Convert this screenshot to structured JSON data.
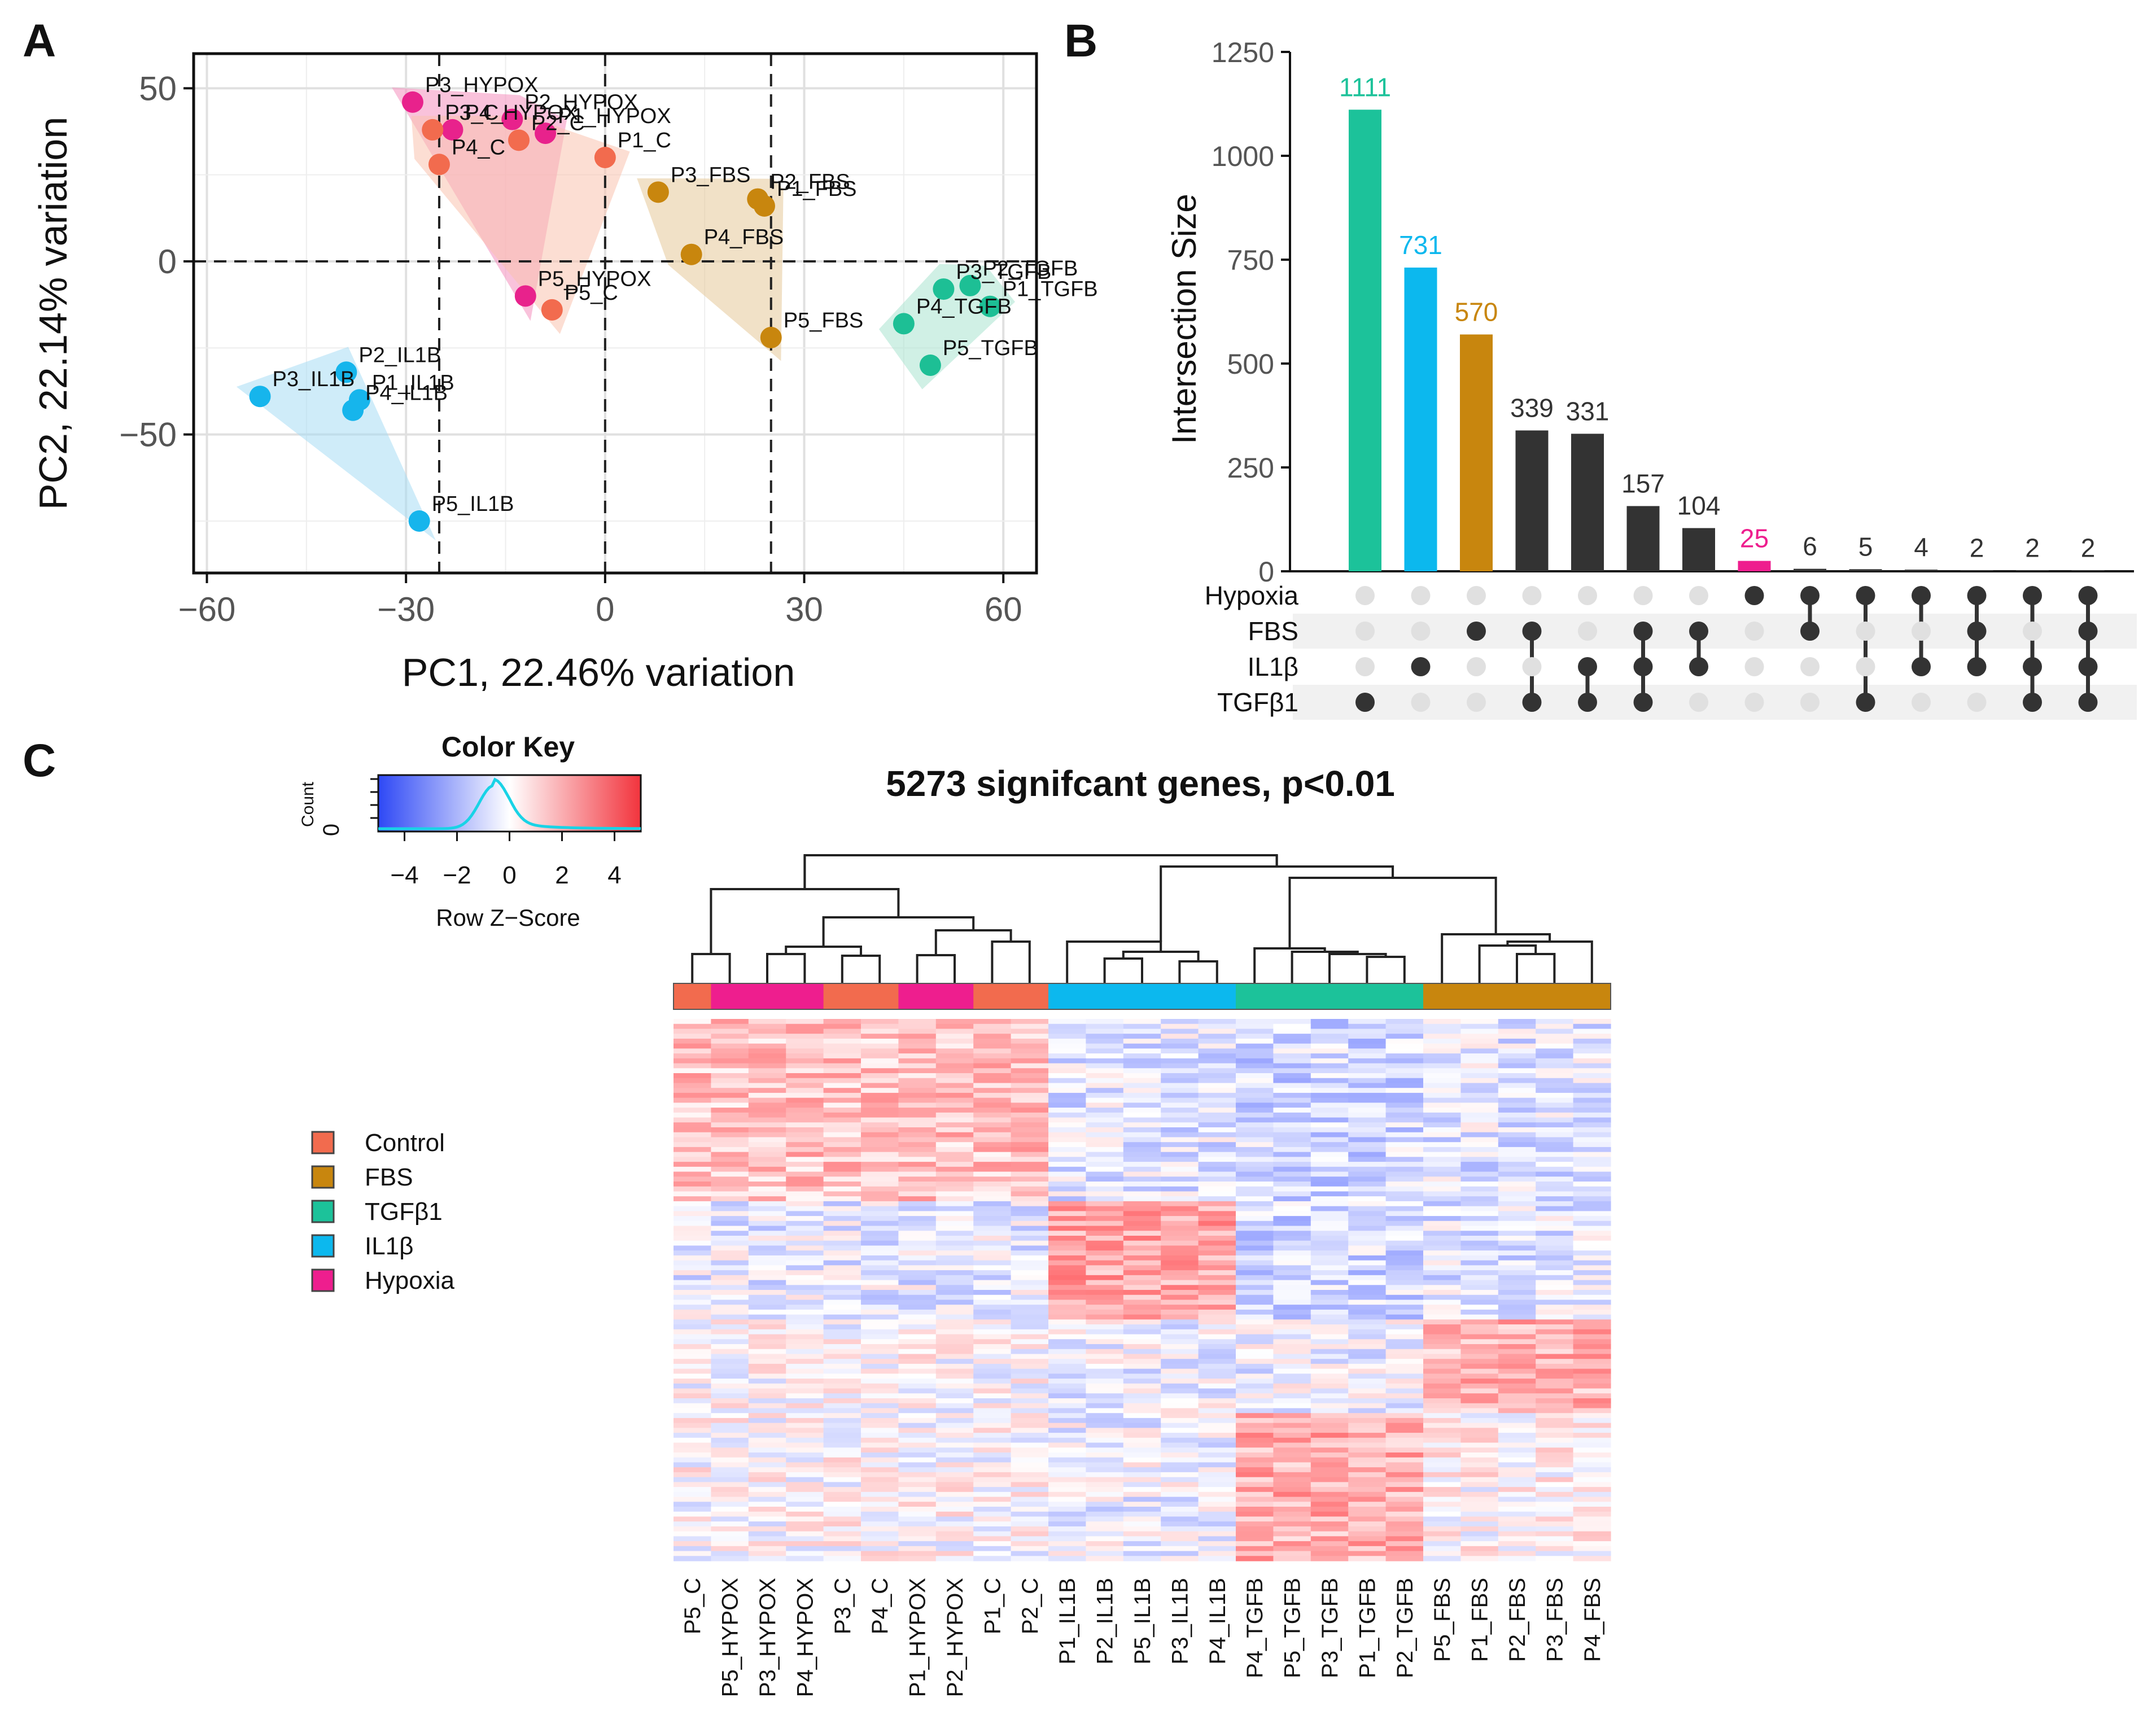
{
  "panels": {
    "a": "A",
    "b": "B",
    "c": "C"
  },
  "chart_data": [
    {
      "id": "pca",
      "type": "scatter",
      "xlabel": "PC1, 22.46% variation",
      "ylabel": "PC2, 22.14% variation",
      "xlim": [
        -62,
        65
      ],
      "ylim": [
        -90,
        60
      ],
      "xticks": [
        -60,
        -30,
        0,
        30,
        60
      ],
      "yticks": [
        50,
        0,
        -50
      ],
      "ytick_labels": [
        "50",
        "0",
        "−50"
      ],
      "xtick_labels": [
        "−60",
        "−30",
        "0",
        "30",
        "60"
      ],
      "reference_lines": {
        "x": [
          -25,
          0,
          25
        ],
        "y": [
          0
        ]
      },
      "grid": true,
      "groups": [
        {
          "name": "Hypoxia",
          "color": "#E8228C",
          "hull": "#F48FBE",
          "points": [
            {
              "label": "P3_HYPOX",
              "x": -29,
              "y": 46
            },
            {
              "label": "P2_HYPOX",
              "x": -14,
              "y": 41
            },
            {
              "label": "P4_HYPOX",
              "x": -23,
              "y": 38
            },
            {
              "label": "P1_HYPOX",
              "x": -9,
              "y": 37
            },
            {
              "label": "P5_HYPOX",
              "x": -12,
              "y": -10
            }
          ]
        },
        {
          "name": "Control",
          "color": "#F26B4E",
          "hull": "#F9C2AF",
          "points": [
            {
              "label": "P3_C",
              "x": -26,
              "y": 38
            },
            {
              "label": "P4_C",
              "x": -25,
              "y": 28
            },
            {
              "label": "P2_C",
              "x": -13,
              "y": 35
            },
            {
              "label": "P1_C",
              "x": 0,
              "y": 30
            },
            {
              "label": "P5_C",
              "x": -8,
              "y": -14
            }
          ]
        },
        {
          "name": "FBS",
          "color": "#C8860E",
          "hull": "#E6C999",
          "points": [
            {
              "label": "P2_FBS",
              "x": 23,
              "y": 18
            },
            {
              "label": "P1_FBS",
              "x": 24,
              "y": 16
            },
            {
              "label": "P3_FBS",
              "x": 8,
              "y": 20
            },
            {
              "label": "P4_FBS",
              "x": 13,
              "y": 2
            },
            {
              "label": "P5_FBS",
              "x": 25,
              "y": -22
            }
          ]
        },
        {
          "name": "TGFB",
          "color": "#1DBF95",
          "hull": "#A9E3CF",
          "points": [
            {
              "label": "P2_TGFB",
              "x": 55,
              "y": -7
            },
            {
              "label": "P3_TGFB",
              "x": 51,
              "y": -8
            },
            {
              "label": "P1_TGFB",
              "x": 58,
              "y": -13
            },
            {
              "label": "P4_TGFB",
              "x": 45,
              "y": -18
            },
            {
              "label": "P5_TGFB",
              "x": 49,
              "y": -30
            }
          ]
        },
        {
          "name": "IL1B",
          "color": "#16B5EC",
          "hull": "#A8DDF4",
          "points": [
            {
              "label": "P2_IL1B",
              "x": -39,
              "y": -32
            },
            {
              "label": "P1_IL1B",
              "x": -37,
              "y": -40
            },
            {
              "label": "P3_IL1B",
              "x": -52,
              "y": -39
            },
            {
              "label": "P4_IL1B",
              "x": -38,
              "y": -43
            },
            {
              "label": "P5_IL1B",
              "x": -28,
              "y": -75
            }
          ]
        }
      ]
    },
    {
      "id": "upset",
      "type": "bar",
      "ylabel": "Intersection Size",
      "ylim": [
        0,
        1250
      ],
      "yticks": [
        0,
        250,
        500,
        750,
        1000,
        1250
      ],
      "values": [
        1111,
        731,
        570,
        339,
        331,
        157,
        104,
        25,
        6,
        5,
        4,
        2,
        2,
        2
      ],
      "value_labels": [
        "1111",
        "731",
        "570",
        "339",
        "331",
        "157",
        "104",
        "25",
        "6",
        "5",
        "4",
        "2",
        "2",
        "2"
      ],
      "bar_colors": [
        "#1CC29A",
        "#0CB8EE",
        "#C8860E",
        "#333333",
        "#333333",
        "#333333",
        "#333333",
        "#EE1E8E",
        "#333333",
        "#333333",
        "#333333",
        "#333333",
        "#333333",
        "#333333"
      ],
      "sets": [
        "Hypoxia",
        "FBS",
        "IL1β",
        "TGFβ1"
      ],
      "membership": [
        [
          3
        ],
        [
          2
        ],
        [
          1
        ],
        [
          1,
          3
        ],
        [
          2,
          3
        ],
        [
          1,
          2,
          3
        ],
        [
          1,
          2
        ],
        [
          0
        ],
        [
          0,
          1
        ],
        [
          0,
          3
        ],
        [
          0,
          2
        ],
        [
          0,
          1,
          2
        ],
        [
          0,
          2,
          3
        ],
        [
          0,
          1,
          2,
          3
        ]
      ]
    },
    {
      "id": "heatmap",
      "type": "heatmap",
      "title": "5273 signifcant genes, p<0.01",
      "columns": [
        "P5_C",
        "P5_HYPOX",
        "P3_HYPOX",
        "P4_HYPOX",
        "P3_C",
        "P4_C",
        "P1_HYPOX",
        "P2_HYPOX",
        "P1_C",
        "P2_C",
        "P1_IL1B",
        "P2_IL1B",
        "P5_IL1B",
        "P3_IL1B",
        "P4_IL1B",
        "P4_TGFB",
        "P5_TGFB",
        "P3_TGFB",
        "P1_TGFB",
        "P2_TGFB",
        "P5_FBS",
        "P1_FBS",
        "P2_FBS",
        "P3_FBS",
        "P4_FBS"
      ],
      "column_groups": [
        "Control",
        "Hypoxia",
        "Hypoxia",
        "Hypoxia",
        "Control",
        "Control",
        "Hypoxia",
        "Hypoxia",
        "Control",
        "Control",
        "IL1B",
        "IL1B",
        "IL1B",
        "IL1B",
        "IL1B",
        "TGFB",
        "TGFB",
        "TGFB",
        "TGFB",
        "TGFB",
        "FBS",
        "FBS",
        "FBS",
        "FBS",
        "FBS"
      ],
      "group_colors": {
        "Control": "#F26B4E",
        "Hypoxia": "#EE1E8E",
        "IL1B": "#0CB8EE",
        "TGFB": "#1CC29A",
        "FBS": "#C8860E"
      },
      "color_key": {
        "title": "Color Key",
        "xlabel": "Row Z−Score",
        "ylabel": "Count",
        "ytick": "0",
        "xticks": [
          "−4",
          "−2",
          "0",
          "2",
          "4"
        ],
        "range": [
          -5,
          5
        ],
        "low": "#2E48F5",
        "mid": "#FFFFFF",
        "high": "#F2343D"
      },
      "legend": [
        {
          "label": "Control",
          "color": "#F26B4E"
        },
        {
          "label": "FBS",
          "color": "#C8860E"
        },
        {
          "label": "TGFβ1",
          "color": "#1CC29A"
        },
        {
          "label": "IL1β",
          "color": "#0CB8EE"
        },
        {
          "label": "Hypoxia",
          "color": "#EE1E8E"
        }
      ]
    }
  ]
}
